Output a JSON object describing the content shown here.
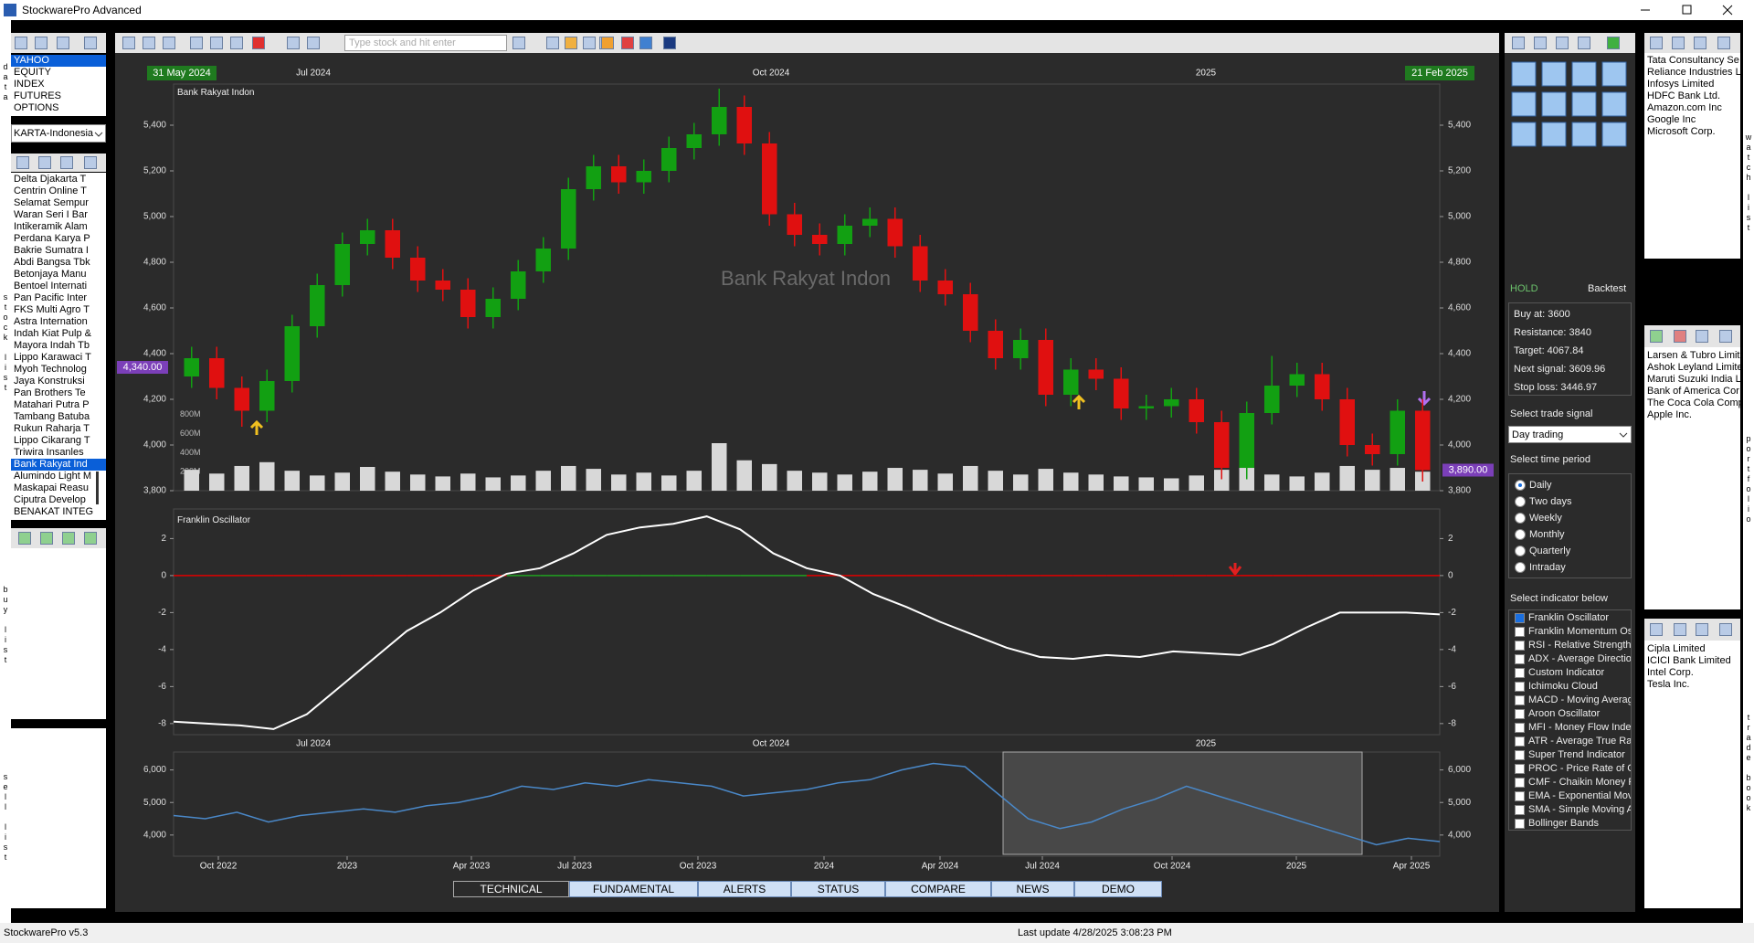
{
  "window": {
    "title": "StockwarePro Advanced"
  },
  "status_bar": {
    "version": "StockwarePro v5.3",
    "last_update": "Last update 4/28/2025 3:08:23 PM"
  },
  "left_panel": {
    "side_labels": [
      "data",
      "stock list",
      "buy list",
      "sell list"
    ],
    "data_sources": [
      "YAHOO",
      "EQUITY",
      "INDEX",
      "FUTURES",
      "OPTIONS"
    ],
    "selected_source_index": 0,
    "exchange": "KARTA-Indonesia",
    "stocks": [
      "Delta Djakarta T",
      "Centrin Online T",
      "Selamat Sempur",
      "Waran Seri I Bar",
      "Intikeramik Alam",
      "Perdana Karya P",
      "Bakrie Sumatra I",
      "Abdi Bangsa Tbk",
      "Betonjaya Manu",
      "Bentoel Internati",
      "Pan Pacific Inter",
      "FKS Multi Agro T",
      "Astra Internation",
      "Indah Kiat Pulp &",
      "Mayora Indah Tb",
      "Lippo Karawaci T",
      "Myoh Technolog",
      "Jaya Konstruksi",
      "Pan Brothers Te",
      "Matahari Putra P",
      "Tambang Batuba",
      "Rukun Raharja T",
      "Lippo Cikarang T",
      "Triwira Insanles",
      "Bank Rakyat Ind",
      "Alumindo Light M",
      "Maskapai Reasu",
      "Ciputra Develop",
      "BENAKAT INTEG"
    ],
    "selected_stock_index": 24
  },
  "toolbar": {
    "search_placeholder": "Type stock and hit enter"
  },
  "chart_data": [
    {
      "type": "candlestick",
      "title": "Bank Rakyat Indon",
      "start_label": "31 May 2024",
      "end_label": "21 Feb 2025",
      "x_labels": [
        "Jul 2024",
        "Oct 2024",
        "2025"
      ],
      "open": [
        4300,
        4380,
        4250,
        4150,
        4280,
        4520,
        4700,
        4880,
        4940,
        4820,
        4720,
        4680,
        4560,
        4640,
        4760,
        4860,
        5120,
        5220,
        5150,
        5200,
        5300,
        5360,
        5480,
        5320,
        5010,
        4920,
        4880,
        4960,
        4990,
        4870,
        4720,
        4660,
        4500,
        4380,
        4460,
        4220,
        4330,
        4290,
        4160,
        4170,
        4200,
        4100,
        3900,
        4140,
        4260,
        4310,
        4200,
        4000,
        3960,
        4150
      ],
      "high": [
        4430,
        4430,
        4300,
        4330,
        4570,
        4750,
        4930,
        4990,
        4990,
        4870,
        4770,
        4730,
        4690,
        4810,
        4910,
        5170,
        5270,
        5270,
        5250,
        5350,
        5410,
        5560,
        5530,
        5370,
        5060,
        4970,
        5010,
        5040,
        5040,
        4920,
        4770,
        4710,
        4550,
        4510,
        4510,
        4380,
        4380,
        4340,
        4220,
        4250,
        4250,
        4150,
        4190,
        4390,
        4360,
        4360,
        4250,
        4050,
        4200,
        4200
      ],
      "low": [
        4250,
        4200,
        4080,
        4100,
        4230,
        4470,
        4650,
        4830,
        4770,
        4670,
        4630,
        4510,
        4510,
        4590,
        4710,
        4810,
        5070,
        5100,
        5100,
        5150,
        5250,
        5310,
        5270,
        4960,
        4870,
        4830,
        4830,
        4910,
        4820,
        4670,
        4610,
        4450,
        4330,
        4330,
        4170,
        4170,
        4240,
        4110,
        4110,
        4120,
        4050,
        3850,
        3850,
        4090,
        4210,
        4150,
        3950,
        3910,
        3910,
        3840
      ],
      "close": [
        4380,
        4250,
        4150,
        4280,
        4520,
        4700,
        4880,
        4940,
        4820,
        4720,
        4680,
        4560,
        4640,
        4760,
        4860,
        5120,
        5220,
        5150,
        5200,
        5300,
        5360,
        5480,
        5320,
        5010,
        4920,
        4880,
        4960,
        4990,
        4870,
        4720,
        4660,
        4500,
        4380,
        4460,
        4220,
        4330,
        4290,
        4160,
        4170,
        4200,
        4100,
        3900,
        4140,
        4260,
        4310,
        4200,
        4000,
        3960,
        4150,
        3890
      ],
      "up_color": "#12a012",
      "down_color": "#e01010",
      "ylim": [
        3800,
        5580
      ],
      "yticks": [
        {
          "value": 3800,
          "label": "3,800"
        },
        {
          "value": 4000,
          "label": "4,000"
        },
        {
          "value": 4200,
          "label": "4,200"
        },
        {
          "value": 4400,
          "label": "4,400"
        },
        {
          "value": 4600,
          "label": "4,600"
        },
        {
          "value": 4800,
          "label": "4,800"
        },
        {
          "value": 5000,
          "label": "5,000"
        },
        {
          "value": 5200,
          "label": "5,200"
        },
        {
          "value": 5400,
          "label": "5,400"
        }
      ],
      "volume": [
        220,
        180,
        260,
        300,
        210,
        160,
        190,
        250,
        200,
        170,
        150,
        180,
        140,
        160,
        210,
        260,
        230,
        170,
        190,
        160,
        210,
        500,
        320,
        280,
        210,
        190,
        170,
        200,
        240,
        220,
        180,
        260,
        210,
        170,
        230,
        190,
        170,
        150,
        140,
        130,
        160,
        220,
        240,
        170,
        150,
        190,
        260,
        220,
        240,
        200
      ],
      "volume_color": "#d8d8d8",
      "volume_ylim": [
        0,
        1000
      ],
      "volume_ticks": [
        {
          "value": 200,
          "label": "200M"
        },
        {
          "value": 400,
          "label": "400M"
        },
        {
          "value": 600,
          "label": "600M"
        },
        {
          "value": 800,
          "label": "800M"
        }
      ],
      "marker_price": {
        "value": 4340,
        "label": "4,340.00"
      },
      "last_price": {
        "value": 3890,
        "label": "3,890.00"
      }
    },
    {
      "type": "line",
      "title": "Franklin Oscillator",
      "color": "#ffffff",
      "values": [
        -7.9,
        -8.0,
        -8.1,
        -8.3,
        -7.5,
        -6.0,
        -4.5,
        -3.0,
        -2.0,
        -0.8,
        0.1,
        0.4,
        1.2,
        2.2,
        2.6,
        2.8,
        3.2,
        2.5,
        1.2,
        0.4,
        0.0,
        -1.0,
        -1.7,
        -2.5,
        -3.2,
        -3.9,
        -4.4,
        -4.5,
        -4.3,
        -4.4,
        -4.1,
        -4.2,
        -4.3,
        -3.7,
        -2.8,
        -2.0,
        -2.0,
        -2.0,
        -2.1
      ],
      "ylim": [
        -8.6,
        3.6
      ],
      "yticks": [
        2,
        0,
        -2,
        -4,
        -6,
        -8
      ],
      "zero_line_color": "#e00000",
      "positive_zero_color": "#20a020",
      "x_labels": [
        "Jul 2024",
        "Oct 2024",
        "2025"
      ]
    },
    {
      "type": "line",
      "color": "#4a88c8",
      "values": [
        4600,
        4500,
        4700,
        4400,
        4600,
        4700,
        4800,
        4700,
        4900,
        5000,
        5200,
        5500,
        5400,
        5600,
        5500,
        5700,
        5600,
        5500,
        5200,
        5300,
        5400,
        5600,
        5700,
        6000,
        6200,
        6100,
        5300,
        4500,
        4200,
        4400,
        4800,
        5100,
        5500,
        5200,
        4900,
        4600,
        4300,
        4000,
        3700,
        3900,
        3800
      ],
      "ylim": [
        3350,
        6550
      ],
      "yticks": [
        {
          "value": 4000,
          "label": "4,000"
        },
        {
          "value": 5000,
          "label": "5,000"
        },
        {
          "value": 6000,
          "label": "6,000"
        }
      ],
      "x_labels": [
        "Oct 2022",
        "2023",
        "Apr 2023",
        "Jul 2023",
        "Oct 2023",
        "2024",
        "Apr 2024",
        "Jul 2024",
        "Oct 2024",
        "2025",
        "Apr 2025"
      ]
    }
  ],
  "tabs": {
    "items": [
      "TECHNICAL",
      "FUNDAMENTAL",
      "ALERTS",
      "STATUS",
      "COMPARE",
      "NEWS",
      "DEMO"
    ],
    "active_index": 0
  },
  "right_panel": {
    "signal": "HOLD",
    "backtest": "Backtest",
    "levels": [
      "Buy at: 3600",
      "Resistance: 3840",
      "Target: 4067.84",
      "Next signal: 3609.96",
      "Stop loss: 3446.97"
    ],
    "trade_signal_label": "Select trade signal",
    "trade_signal": "Day trading",
    "time_period_label": "Select time period",
    "time_periods": [
      "Daily",
      "Two days",
      "Weekly",
      "Monthly",
      "Quarterly",
      "Intraday"
    ],
    "selected_period_index": 0,
    "indicator_label": "Select indicator below",
    "indicators": [
      "Franklin Oscillator",
      "Franklin Momentum Osc",
      "RSI - Relative Strength",
      "ADX - Average Direction",
      "Custom Indicator",
      "Ichimoku Cloud",
      "MACD - Moving Average",
      "Aroon Oscillator",
      "MFI - Money Flow Index",
      "ATR - Average True Ra",
      "Super Trend Indicator",
      "PROC - Price Rate of Ch",
      "CMF - Chaikin Money Fl",
      "EMA - Exponential Movi",
      "SMA - Simple Moving Av",
      "Bollinger Bands"
    ],
    "checked_indicator_index": 0
  },
  "watch_list": {
    "side_label": "watch list",
    "items": [
      "Tata Consultancy Se",
      "Reliance Industries L",
      "Infosys Limited",
      "HDFC Bank Ltd.",
      "Amazon.com Inc",
      "Google Inc",
      "Microsoft Corp."
    ]
  },
  "portfolio": {
    "side_label": "portfolio",
    "items": [
      "Larsen & Tubro Limite",
      "Ashok Leyland Limite",
      "Maruti Suzuki India L",
      "Bank of America Cor",
      "The Coca Cola Comp",
      "Apple Inc."
    ]
  },
  "trade_book": {
    "side_label": "trade book",
    "items": [
      "Cipla Limited",
      "ICICI Bank Limited",
      "Intel Corp.",
      "Tesla Inc."
    ]
  }
}
